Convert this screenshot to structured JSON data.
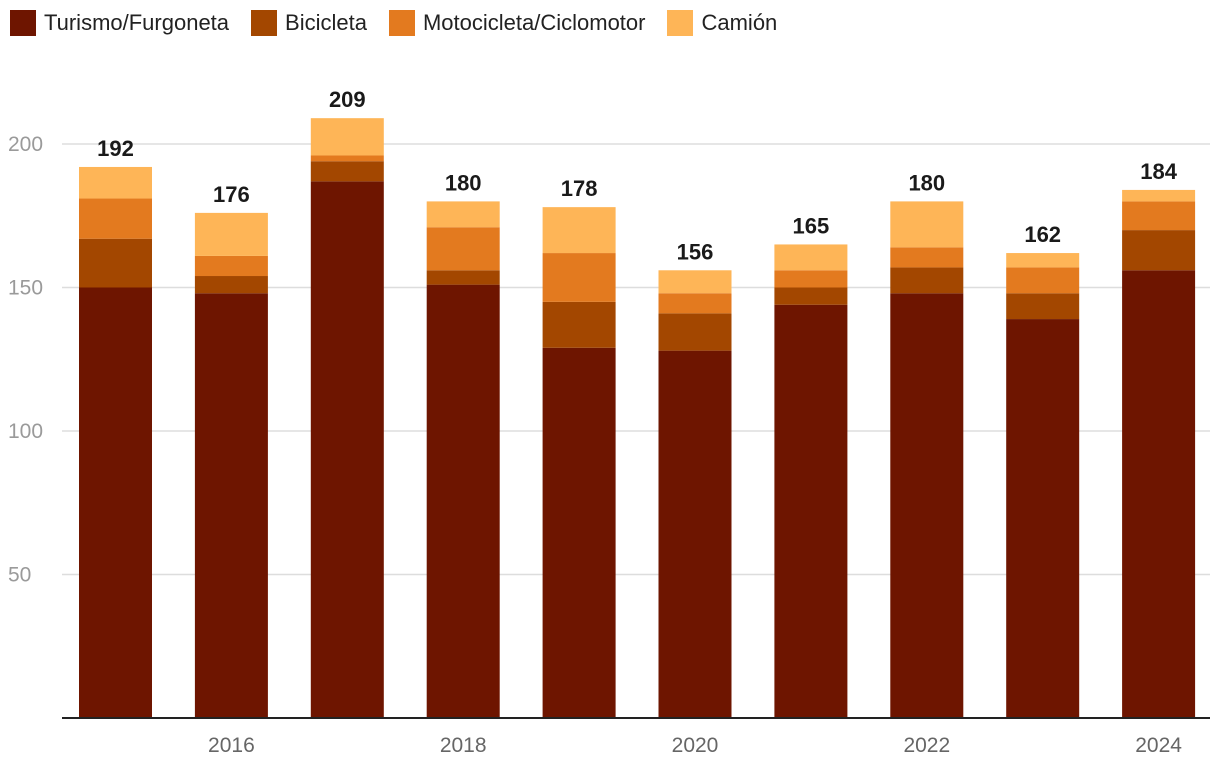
{
  "chart_data": {
    "type": "bar",
    "stacked": true,
    "categories": [
      "2015",
      "2016",
      "2017",
      "2018",
      "2019",
      "2020",
      "2021",
      "2022",
      "2023",
      "2024"
    ],
    "x_tick_labels": [
      "",
      "2016",
      "",
      "2018",
      "",
      "2020",
      "",
      "2022",
      "",
      "2024"
    ],
    "series": [
      {
        "name": "Turismo/Furgoneta",
        "color": "#6e1500",
        "values": [
          150,
          148,
          187,
          151,
          129,
          128,
          144,
          148,
          139,
          156
        ]
      },
      {
        "name": "Bicicleta",
        "color": "#a34700",
        "values": [
          17,
          6,
          7,
          5,
          16,
          13,
          6,
          9,
          9,
          14
        ]
      },
      {
        "name": "Motocicleta/Ciclomotor",
        "color": "#e37a1f",
        "values": [
          14,
          7,
          2,
          15,
          17,
          7,
          6,
          7,
          9,
          10
        ]
      },
      {
        "name": "Camión",
        "color": "#feb557",
        "values": [
          11,
          15,
          13,
          9,
          16,
          8,
          9,
          16,
          5,
          4
        ]
      }
    ],
    "totals": [
      192,
      176,
      209,
      180,
      178,
      156,
      165,
      180,
      162,
      184
    ],
    "y_ticks": [
      50,
      100,
      150,
      200
    ],
    "ylim": [
      0,
      215
    ],
    "grid": true,
    "legend_position": "top-left",
    "title": "",
    "xlabel": "",
    "ylabel": ""
  }
}
